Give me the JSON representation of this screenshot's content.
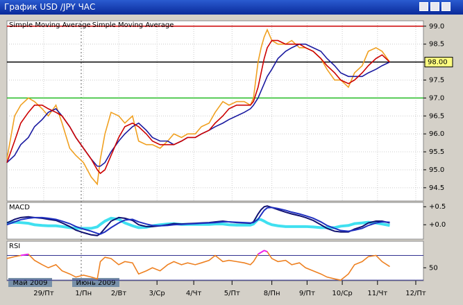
{
  "window": {
    "title": "График USD /JPY  ЧАС"
  },
  "chart_data": [
    {
      "type": "line",
      "legend": [
        "Simple  Moving  Average",
        "Simple  Moving  Average"
      ],
      "x": [
        0,
        5,
        9,
        14,
        18,
        23,
        27,
        32,
        36,
        41,
        45,
        50,
        55,
        59,
        61,
        64,
        68,
        73,
        77,
        82,
        86,
        91,
        95,
        100,
        105,
        109,
        114,
        118,
        123,
        127,
        132,
        136,
        141,
        145,
        150,
        155,
        159,
        161,
        164,
        166,
        168,
        170,
        173,
        177,
        182,
        186,
        191,
        195,
        200,
        205,
        209,
        214,
        218,
        223,
        227,
        232,
        236,
        241,
        245,
        250
      ],
      "xlim": [
        0,
        272
      ],
      "xticks": [
        {
          "value": 24,
          "label": "29/Пт"
        },
        {
          "value": 50,
          "label": "1/Пн"
        },
        {
          "value": 73,
          "label": "2/Вт"
        },
        {
          "value": 98,
          "label": "3/Ср"
        },
        {
          "value": 122,
          "label": "4/Чт"
        },
        {
          "value": 147,
          "label": "5/Пт"
        },
        {
          "value": 173,
          "label": "8/Пн"
        },
        {
          "value": 196,
          "label": "9/Пт"
        },
        {
          "value": 219,
          "label": "10/Ср"
        },
        {
          "value": 242,
          "label": "11/Чт"
        },
        {
          "value": 267,
          "label": "12/Пт"
        }
      ],
      "months": [
        "Май 2009",
        "Июнь 2009"
      ],
      "ylim": [
        94.13,
        99.15
      ],
      "yticks": [
        {
          "value": 94.5,
          "label": "94.5"
        },
        {
          "value": 95,
          "label": "95.0"
        },
        95.5,
        {
          "value": 96,
          "label": "96.0"
        },
        96.5,
        {
          "value": 97,
          "label": "97.0"
        },
        97.5,
        {
          "value": 98,
          "label": "98.0"
        },
        98.5,
        {
          "value": 99,
          "label": "99.0"
        }
      ],
      "grid": true,
      "hlines": [
        {
          "value": 99,
          "color": "#cc0000"
        },
        {
          "value": 98,
          "color": "#000000",
          "label": "98.00"
        },
        {
          "value": 97,
          "color": "#22bb22"
        }
      ],
      "series": [
        {
          "color": "#f0a020",
          "values": [
            95.3,
            96.5,
            96.8,
            97.0,
            96.9,
            96.7,
            96.5,
            96.8,
            96.3,
            95.6,
            95.4,
            95.2,
            94.8,
            94.6,
            95.3,
            96.0,
            96.6,
            96.5,
            96.3,
            96.5,
            95.8,
            95.7,
            95.7,
            95.6,
            95.8,
            96.0,
            95.9,
            96.0,
            96.0,
            96.2,
            96.3,
            96.6,
            96.9,
            96.8,
            96.9,
            96.9,
            96.8,
            97.0,
            98.0,
            98.4,
            98.7,
            98.9,
            98.6,
            98.5,
            98.5,
            98.6,
            98.4,
            98.4,
            98.3,
            98.1,
            97.8,
            97.5,
            97.5,
            97.3,
            97.7,
            97.9,
            98.3,
            98.4,
            98.3,
            98.0
          ]
        },
        {
          "name": "Simple  Moving  Average",
          "color": "#1a1aa0",
          "values": [
            95.2,
            95.4,
            95.7,
            95.9,
            96.2,
            96.4,
            96.6,
            96.7,
            96.5,
            96.2,
            95.9,
            95.6,
            95.3,
            95.1,
            95.1,
            95.2,
            95.5,
            95.8,
            96.0,
            96.2,
            96.3,
            96.1,
            95.9,
            95.8,
            95.8,
            95.7,
            95.8,
            95.9,
            95.9,
            96.0,
            96.1,
            96.2,
            96.3,
            96.4,
            96.5,
            96.6,
            96.7,
            96.8,
            97.0,
            97.2,
            97.4,
            97.6,
            97.8,
            98.1,
            98.3,
            98.4,
            98.5,
            98.5,
            98.4,
            98.3,
            98.1,
            97.9,
            97.7,
            97.6,
            97.6,
            97.6,
            97.7,
            97.8,
            97.9,
            98.0
          ]
        },
        {
          "name": "Simple  Moving  Average",
          "color": "#cc0000",
          "values": [
            95.2,
            95.8,
            96.3,
            96.6,
            96.8,
            96.8,
            96.7,
            96.6,
            96.5,
            96.2,
            95.9,
            95.6,
            95.3,
            95.0,
            94.9,
            95.0,
            95.4,
            95.9,
            96.2,
            96.3,
            96.2,
            96.0,
            95.8,
            95.7,
            95.7,
            95.7,
            95.8,
            95.9,
            95.9,
            96.0,
            96.1,
            96.3,
            96.5,
            96.7,
            96.8,
            96.8,
            96.8,
            96.9,
            97.3,
            97.7,
            98.1,
            98.4,
            98.6,
            98.6,
            98.5,
            98.5,
            98.5,
            98.4,
            98.3,
            98.1,
            97.9,
            97.7,
            97.5,
            97.4,
            97.5,
            97.7,
            97.9,
            98.1,
            98.2,
            98.0
          ]
        }
      ]
    },
    {
      "type": "line",
      "title": "MACD",
      "ylim": [
        -0.4,
        0.62
      ],
      "yticks": [
        {
          "value": 0,
          "label": "+0.0"
        },
        {
          "value": 0.5,
          "label": "+0.5"
        }
      ],
      "series": [
        {
          "color": "#40e0f0",
          "width": 4,
          "values": [
            0.05,
            0.07,
            0.06,
            0.04,
            0,
            -0.02,
            -0.03,
            -0.03,
            -0.05,
            -0.08,
            -0.1,
            -0.1,
            -0.1,
            -0.06,
            0.01,
            0.1,
            0.18,
            0.15,
            0.05,
            -0.03,
            -0.08,
            -0.07,
            -0.03,
            0,
            0.02,
            0.03,
            0.01,
            0.01,
            0.01,
            0.01,
            0.01,
            0.02,
            0.02,
            0,
            -0.01,
            -0.01,
            -0.01,
            0.02,
            0.15,
            0.14,
            0.1,
            0.05,
            0,
            -0.03,
            -0.05,
            -0.05,
            -0.05,
            -0.05,
            -0.06,
            -0.08,
            -0.08,
            -0.08,
            -0.04,
            -0.02,
            0.03,
            0.05,
            0.07,
            0.05,
            0.02,
            -0.02
          ]
        },
        {
          "color": "#101070",
          "width": 2,
          "values": [
            0.05,
            0.15,
            0.2,
            0.22,
            0.2,
            0.18,
            0.15,
            0.12,
            0.05,
            -0.05,
            -0.15,
            -0.22,
            -0.28,
            -0.3,
            -0.25,
            -0.1,
            0.1,
            0.2,
            0.18,
            0.12,
            0.0,
            -0.05,
            -0.05,
            -0.03,
            0.0,
            0.03,
            0.02,
            0.03,
            0.04,
            0.05,
            0.06,
            0.08,
            0.1,
            0.08,
            0.06,
            0.05,
            0.04,
            0.08,
            0.3,
            0.42,
            0.5,
            0.52,
            0.48,
            0.42,
            0.35,
            0.3,
            0.25,
            0.2,
            0.12,
            0.0,
            -0.1,
            -0.18,
            -0.2,
            -0.2,
            -0.12,
            -0.05,
            0.05,
            0.1,
            0.1,
            0.05
          ]
        },
        {
          "color": "#2030c0",
          "width": 2,
          "values": [
            0.0,
            0.08,
            0.14,
            0.18,
            0.2,
            0.2,
            0.18,
            0.15,
            0.1,
            0.03,
            -0.05,
            -0.12,
            -0.18,
            -0.24,
            -0.26,
            -0.2,
            -0.08,
            0.05,
            0.13,
            0.15,
            0.08,
            0.02,
            -0.02,
            -0.03,
            -0.02,
            0.0,
            0.01,
            0.02,
            0.03,
            0.04,
            0.05,
            0.06,
            0.08,
            0.08,
            0.07,
            0.06,
            0.05,
            0.06,
            0.15,
            0.28,
            0.4,
            0.47,
            0.48,
            0.45,
            0.4,
            0.35,
            0.3,
            0.25,
            0.18,
            0.08,
            -0.02,
            -0.1,
            -0.16,
            -0.18,
            -0.15,
            -0.1,
            -0.02,
            0.05,
            0.08,
            0.07
          ]
        }
      ]
    },
    {
      "type": "line",
      "title": "RSI",
      "ylim": [
        29,
        93
      ],
      "yticks": [
        50
      ],
      "levels": [
        70,
        30
      ],
      "high_color": "#ee22ee",
      "low_color": "#22aa22",
      "series": [
        {
          "color": "#ee8020",
          "values": [
            65,
            68,
            70,
            72,
            62,
            55,
            50,
            55,
            45,
            40,
            35,
            38,
            35,
            32,
            60,
            67,
            65,
            55,
            60,
            58,
            40,
            45,
            50,
            45,
            55,
            60,
            55,
            58,
            55,
            58,
            62,
            70,
            60,
            62,
            60,
            58,
            55,
            60,
            72,
            75,
            78,
            76,
            65,
            60,
            62,
            55,
            58,
            50,
            45,
            40,
            35,
            32,
            30,
            40,
            55,
            60,
            68,
            70,
            60,
            52
          ]
        }
      ]
    }
  ]
}
